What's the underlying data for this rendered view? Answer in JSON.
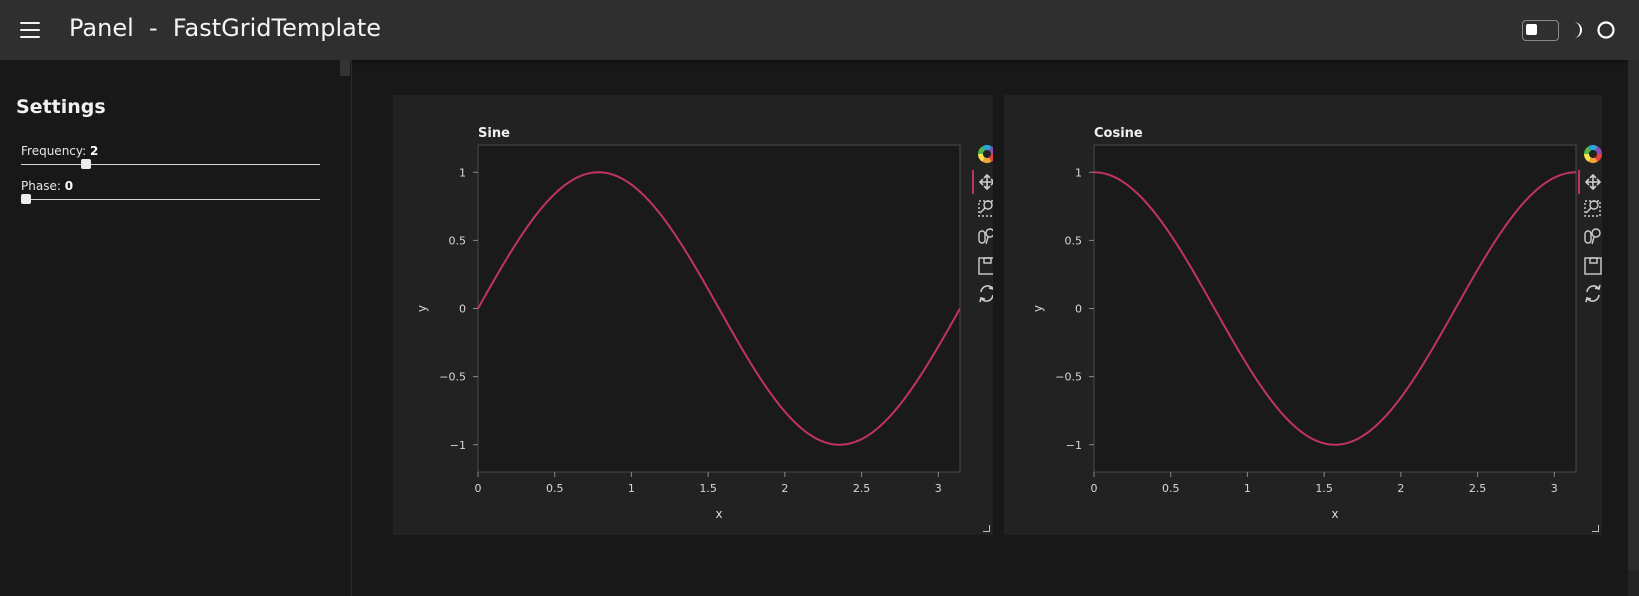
{
  "header": {
    "title": "Panel  -  FastGridTemplate",
    "menu_icon": "hamburger-menu-icon",
    "theme_icons": [
      "theme-toggle",
      "moon-icon",
      "circle-icon"
    ]
  },
  "sidebar": {
    "title": "Settings",
    "sliders": [
      {
        "label": "Frequency:",
        "value": "2",
        "fraction": 0.2
      },
      {
        "label": "Phase:",
        "value": "0",
        "fraction": 0.0
      }
    ]
  },
  "colors": {
    "line": "#c0345e",
    "background": "#181818",
    "header": "#2f2f2f",
    "card": "#222222"
  },
  "toolbar_icons": [
    "bokeh-logo-icon",
    "pan-icon",
    "box-zoom-icon",
    "wheel-zoom-icon",
    "save-icon",
    "reset-icon"
  ],
  "chart_data": [
    {
      "type": "line",
      "title": "Sine",
      "xlabel": "x",
      "ylabel": "y",
      "xlim": [
        0,
        3.14159
      ],
      "ylim": [
        -1.2,
        1.2
      ],
      "xticks": [
        "0",
        "0.5",
        "1",
        "1.5",
        "2",
        "2.5",
        "3"
      ],
      "yticks": [
        "1",
        "0.5",
        "0",
        "−0.5",
        "−1"
      ],
      "series": [
        {
          "function": "sin",
          "frequency": 2,
          "phase": 0
        }
      ]
    },
    {
      "type": "line",
      "title": "Cosine",
      "xlabel": "x",
      "ylabel": "y",
      "xlim": [
        0,
        3.14159
      ],
      "ylim": [
        -1.2,
        1.2
      ],
      "xticks": [
        "0",
        "0.5",
        "1",
        "1.5",
        "2",
        "2.5",
        "3"
      ],
      "yticks": [
        "1",
        "0.5",
        "0",
        "−0.5",
        "−1"
      ],
      "series": [
        {
          "function": "cos",
          "frequency": 2,
          "phase": 0
        }
      ]
    }
  ]
}
